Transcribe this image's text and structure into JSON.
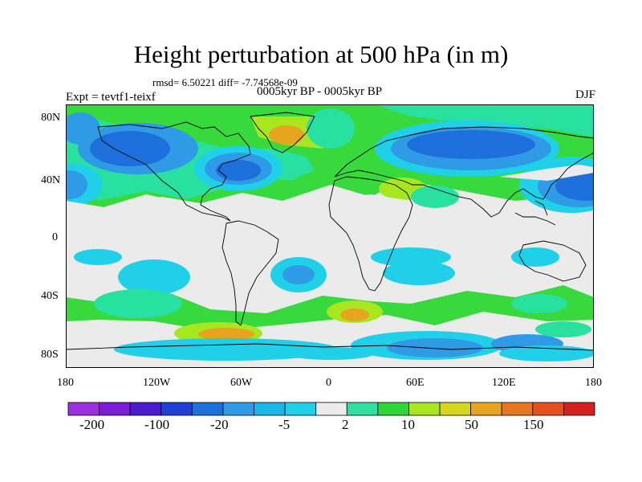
{
  "title": "Height perturbation at 500 hPa (in m)",
  "stats": "rmsd= 6.50221 diff= -7.74568e-09",
  "period": "0005kyr BP - 0005kyr BP",
  "experiment": "Expt = tevtf1-teixf",
  "season": "DJF",
  "lat_labels": [
    "80N",
    "40N",
    "0",
    "40S",
    "80S"
  ],
  "lon_labels": [
    "180",
    "120W",
    "60W",
    "0",
    "60E",
    "120E",
    "180"
  ],
  "colorbar": {
    "colors": [
      "#9b2fe0",
      "#7c1bd8",
      "#4a1bd0",
      "#1f3fd6",
      "#1d6fdc",
      "#2f9be6",
      "#18b8e6",
      "#1fd0e8",
      "#ebebeb",
      "#2fe0a0",
      "#2fd63a",
      "#a8e61f",
      "#d6d61f",
      "#e6a41f",
      "#e6761f",
      "#e6501f",
      "#d61f1f"
    ],
    "labels": [
      "-200",
      "-100",
      "-20",
      "-5",
      "2",
      "10",
      "50",
      "150"
    ]
  },
  "map": {
    "projection": "cylindrical-equidistant",
    "background_color": "#ebebeb",
    "colors": {
      "positive_green": "#37d93c",
      "positive_light": "#28e0a0",
      "yellow": "#a8e61f",
      "orange": "#e6a41f",
      "neg_light": "#1fd0e8",
      "neg_mid": "#2f9be6",
      "neg_dark": "#1d6fdc"
    }
  }
}
